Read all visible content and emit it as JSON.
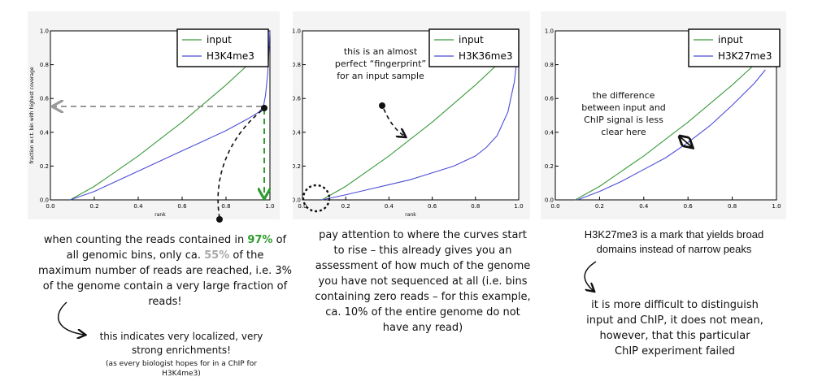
{
  "chart_data": [
    {
      "type": "line",
      "title": "",
      "xlabel": "rank",
      "ylabel": "fraction w.r.t. bin with highest coverage",
      "xlim": [
        0.0,
        1.0
      ],
      "ylim": [
        0.0,
        1.0
      ],
      "xticks": [
        "0.0",
        "0.2",
        "0.4",
        "0.6",
        "0.8",
        "1.0"
      ],
      "yticks": [
        "0.0",
        "0.2",
        "0.4",
        "0.6",
        "0.8",
        "1.0"
      ],
      "grid": false,
      "legend": "top-right",
      "series": [
        {
          "name": "input",
          "color": "#3a9a3a",
          "x": [
            0.09,
            0.2,
            0.3,
            0.4,
            0.5,
            0.6,
            0.7,
            0.8,
            0.9,
            0.95,
            1.0
          ],
          "y": [
            0.0,
            0.08,
            0.17,
            0.26,
            0.36,
            0.46,
            0.57,
            0.68,
            0.8,
            0.86,
            0.92
          ]
        },
        {
          "name": "H3K4me3",
          "color": "#4b4bd8",
          "x": [
            0.09,
            0.2,
            0.3,
            0.4,
            0.5,
            0.6,
            0.7,
            0.8,
            0.9,
            0.95,
            0.97,
            0.98,
            0.99,
            1.0
          ],
          "y": [
            0.0,
            0.05,
            0.11,
            0.17,
            0.23,
            0.29,
            0.35,
            0.41,
            0.48,
            0.52,
            0.55,
            0.62,
            0.75,
            1.0
          ]
        }
      ]
    },
    {
      "type": "line",
      "title": "",
      "xlabel": "rank",
      "ylabel": "",
      "xlim": [
        0.0,
        1.0
      ],
      "ylim": [
        0.0,
        1.0
      ],
      "xticks": [
        "0.0",
        "0.2",
        "0.4",
        "0.6",
        "0.8",
        "1.0"
      ],
      "yticks": [
        "0.0",
        "0.2",
        "0.4",
        "0.6",
        "0.8",
        "1.0"
      ],
      "grid": false,
      "legend": "top-right",
      "series": [
        {
          "name": "input",
          "color": "#3a9a3a",
          "x": [
            0.09,
            0.2,
            0.3,
            0.4,
            0.5,
            0.6,
            0.7,
            0.8,
            0.9,
            0.95,
            1.0
          ],
          "y": [
            0.0,
            0.08,
            0.17,
            0.26,
            0.36,
            0.46,
            0.57,
            0.68,
            0.8,
            0.86,
            0.92
          ]
        },
        {
          "name": "H3K36me3",
          "color": "#4b4bd8",
          "x": [
            0.09,
            0.2,
            0.3,
            0.4,
            0.5,
            0.6,
            0.7,
            0.8,
            0.85,
            0.9,
            0.95,
            0.98,
            1.0
          ],
          "y": [
            0.0,
            0.03,
            0.06,
            0.09,
            0.12,
            0.16,
            0.2,
            0.26,
            0.31,
            0.38,
            0.52,
            0.7,
            0.93
          ]
        }
      ]
    },
    {
      "type": "line",
      "title": "",
      "xlabel": "",
      "ylabel": "",
      "xlim": [
        0.0,
        1.0
      ],
      "ylim": [
        0.0,
        1.0
      ],
      "xticks": [
        "0.0",
        "0.2",
        "0.4",
        "0.6",
        "0.8",
        "1.0"
      ],
      "yticks": [
        "0.0",
        "0.2",
        "0.4",
        "0.6",
        "0.8",
        "1.0"
      ],
      "grid": false,
      "legend": "top-right",
      "series": [
        {
          "name": "input",
          "color": "#3a9a3a",
          "x": [
            0.09,
            0.2,
            0.3,
            0.4,
            0.5,
            0.6,
            0.7,
            0.8,
            0.9,
            0.95
          ],
          "y": [
            0.0,
            0.08,
            0.17,
            0.26,
            0.36,
            0.46,
            0.57,
            0.68,
            0.8,
            0.86
          ]
        },
        {
          "name": "H3K27me3",
          "color": "#4b4bd8",
          "x": [
            0.1,
            0.2,
            0.3,
            0.4,
            0.5,
            0.6,
            0.7,
            0.8,
            0.9,
            0.95
          ],
          "y": [
            0.0,
            0.05,
            0.11,
            0.18,
            0.25,
            0.34,
            0.44,
            0.56,
            0.69,
            0.77
          ]
        }
      ]
    }
  ],
  "annotations": {
    "panel1": {
      "line1_a": "when counting the reads contained in ",
      "pct97": "97%",
      "line1_b": " of",
      "line2_a": "all genomic bins, only ca. ",
      "pct55": "55%",
      "line2_b": " of the",
      "line3": "maximum number of reads are reached, i.e. 3%",
      "line4": "of the genome contain a very large fraction of",
      "line5": "reads!",
      "sub1": "this indicates very localized, very",
      "sub2": "strong enrichments!",
      "small1": "(as every biologist hopes for in a ChIP for",
      "small2": "H3K4me3)"
    },
    "panel2": {
      "inplot1": "this is an almost",
      "inplot2": "perfect “fingerprint”",
      "inplot3": "for an input sample",
      "line1": "pay attention to where the curves start",
      "line2": "to rise – this already gives you an",
      "line3": "assessment of how much of the genome",
      "line4": "you have not sequenced at all (i.e. bins",
      "line5": "containing zero reads – for this example,",
      "line6": "ca. 10% of the entire genome do not",
      "line7": "have any read)"
    },
    "panel3": {
      "inplot1": "the difference",
      "inplot2": "between input and",
      "inplot3": "ChIP signal is less",
      "inplot4": "clear here",
      "head1": "H3K27me3 is a mark that yields broad",
      "head2": "domains instead of narrow peaks",
      "line1": "it is more difficult to distinguish",
      "line2": "input and ChIP, it does not mean,",
      "line3": "however, that this particular",
      "line4": "ChIP experiment failed"
    }
  }
}
